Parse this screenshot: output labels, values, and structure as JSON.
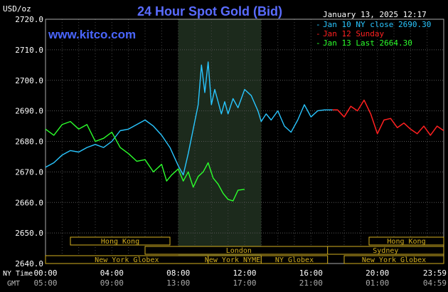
{
  "chart_data": {
    "type": "line",
    "title": "24 Hour Spot Gold (Bid)",
    "site": "www.kitco.com",
    "timestamp": "January 13, 2025 12:17",
    "y_unit": "USD/oz",
    "ylim": [
      2640,
      2720
    ],
    "y_ticks": [
      "2720.0",
      "2710.0",
      "2700.0",
      "2690.0",
      "2680.0",
      "2670.0",
      "2660.0",
      "2650.0",
      "2640.0"
    ],
    "xlim": [
      0,
      24
    ],
    "x_tick_labels": [
      "00:00",
      "04:00",
      "08:00",
      "12:00",
      "16:00",
      "20:00",
      "23:59"
    ],
    "x_tick_labels_gmt": [
      "05:00",
      "09:00",
      "13:00",
      "17:00",
      "21:00",
      "01:00",
      "04:59"
    ],
    "row_label_ny": "NY Time",
    "row_label_gmt": "GMT",
    "grid": true,
    "legend_placement": "top-right",
    "shaded_region": [
      8.0,
      13.0
    ],
    "sessions": [
      {
        "label": "Hong Kong",
        "start": 1.5,
        "end": 7.5,
        "row": 0
      },
      {
        "label": "London",
        "start": 6.0,
        "end": 17.3,
        "row": 1
      },
      {
        "label": "New York Globex",
        "start": 0.0,
        "end": 9.8,
        "row": 2
      },
      {
        "label": "New York NYMEX",
        "start": 9.8,
        "end": 13.0,
        "row": 2
      },
      {
        "label": "NY Globex",
        "start": 13.0,
        "end": 17.0,
        "row": 2
      },
      {
        "label": "Hong Kong",
        "start": 19.5,
        "end": 24.0,
        "row": 0
      },
      {
        "label": "Sydney",
        "start": 17.0,
        "end": 24.0,
        "row": 1
      },
      {
        "label": "New York Globex",
        "start": 18.0,
        "end": 24.0,
        "row": 2
      }
    ],
    "series": [
      {
        "name": "Jan 10 NY close 2690.30",
        "color": "#29c6ff",
        "x": [
          0.0,
          0.5,
          1.0,
          1.5,
          2.0,
          2.5,
          3.0,
          3.5,
          4.0,
          4.5,
          5.0,
          5.5,
          6.0,
          6.5,
          7.0,
          7.5,
          8.0,
          8.3,
          8.6,
          8.9,
          9.2,
          9.4,
          9.6,
          9.8,
          10.0,
          10.2,
          10.4,
          10.6,
          10.8,
          11.0,
          11.3,
          11.6,
          12.0,
          12.4,
          12.8,
          13.0,
          13.3,
          13.6,
          14.0,
          14.4,
          14.8,
          15.2,
          15.6,
          16.0,
          16.4,
          16.8,
          17.3
        ],
        "values": [
          2671.5,
          2673.0,
          2675.5,
          2677.0,
          2676.5,
          2678.0,
          2679.0,
          2678.0,
          2680.0,
          2683.5,
          2684.0,
          2685.5,
          2687.0,
          2685.0,
          2682.0,
          2678.0,
          2672.0,
          2669.0,
          2676.0,
          2684.0,
          2692.0,
          2705.0,
          2696.0,
          2706.0,
          2692.0,
          2697.0,
          2693.0,
          2689.0,
          2693.0,
          2689.0,
          2694.0,
          2691.0,
          2697.0,
          2695.0,
          2690.0,
          2686.5,
          2689.0,
          2687.0,
          2690.0,
          2685.0,
          2683.0,
          2687.0,
          2692.0,
          2688.0,
          2690.0,
          2690.3,
          2690.3
        ]
      },
      {
        "name": "Jan 12 Sunday",
        "color": "#ff2020",
        "x": [
          17.3,
          17.6,
          18.0,
          18.4,
          18.8,
          19.2,
          19.6,
          20.0,
          20.4,
          20.8,
          21.2,
          21.6,
          22.0,
          22.4,
          22.8,
          23.2,
          23.6,
          24.0
        ],
        "values": [
          2690.3,
          2690.3,
          2688.0,
          2691.5,
          2690.0,
          2693.5,
          2689.0,
          2682.5,
          2687.0,
          2687.5,
          2684.5,
          2686.0,
          2684.0,
          2682.5,
          2685.0,
          2682.0,
          2685.0,
          2683.5
        ]
      },
      {
        "name": "Jan 13 Last 2664.30",
        "color": "#2cff2c",
        "x": [
          0.0,
          0.5,
          1.0,
          1.5,
          2.0,
          2.5,
          3.0,
          3.5,
          4.0,
          4.5,
          5.0,
          5.5,
          6.0,
          6.5,
          7.0,
          7.3,
          7.6,
          8.0,
          8.3,
          8.6,
          8.9,
          9.2,
          9.5,
          9.8,
          10.1,
          10.4,
          10.7,
          11.0,
          11.3,
          11.6,
          12.0
        ],
        "values": [
          2684.0,
          2682.0,
          2685.5,
          2686.5,
          2684.0,
          2685.5,
          2680.0,
          2681.0,
          2683.0,
          2678.0,
          2676.0,
          2673.5,
          2674.0,
          2670.0,
          2672.5,
          2667.0,
          2669.0,
          2671.0,
          2667.0,
          2670.0,
          2665.0,
          2668.5,
          2670.0,
          2673.0,
          2668.0,
          2666.0,
          2663.0,
          2661.0,
          2660.5,
          2664.0,
          2664.3
        ]
      }
    ]
  }
}
